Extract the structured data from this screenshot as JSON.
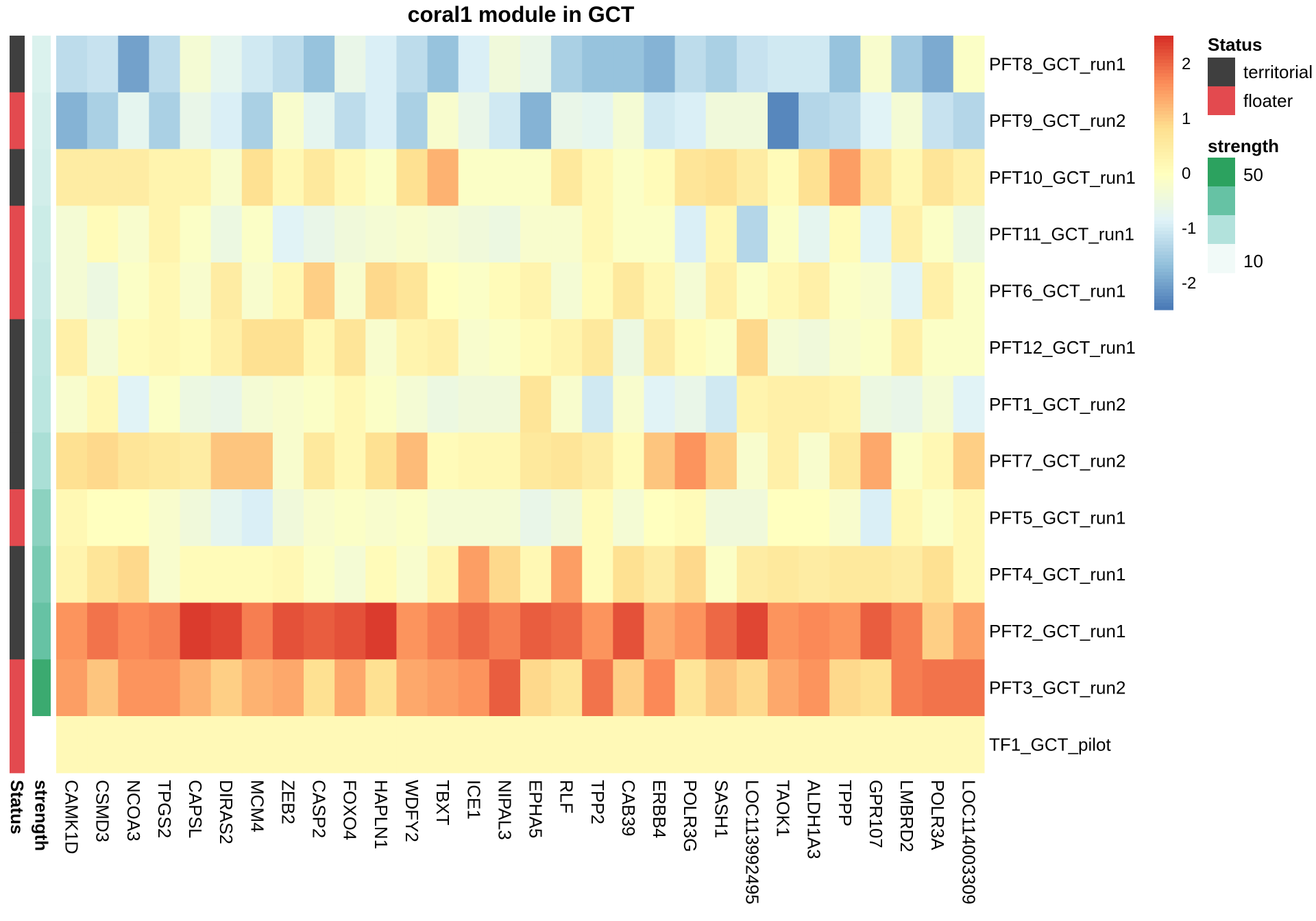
{
  "chart_data": {
    "type": "heatmap",
    "title": "coral1 module in GCT",
    "columns": [
      "CAMK1D",
      "CSMD3",
      "NCOA3",
      "TPGS2",
      "CAPSL",
      "DIRAS2",
      "MCM4",
      "ZEB2",
      "CASP2",
      "FOXO4",
      "HAPLN1",
      "WDFY2",
      "TBXT",
      "ICE1",
      "NIPAL3",
      "EPHA5",
      "RLF",
      "TPP2",
      "CAB39",
      "ERBB4",
      "POLR3G",
      "SASH1",
      "LOC113992495",
      "TAOK1",
      "ALDH1A3",
      "TPPP",
      "GPR107",
      "LMBRD2",
      "POLR3A",
      "LOC114003309"
    ],
    "rows": [
      "PFT8_GCT_run1",
      "PFT9_GCT_run2",
      "PFT10_GCT_run1",
      "PFT11_GCT_run1",
      "PFT6_GCT_run1",
      "PFT12_GCT_run1",
      "PFT1_GCT_run2",
      "PFT7_GCT_run2",
      "PFT5_GCT_run1",
      "PFT4_GCT_run1",
      "PFT2_GCT_run1",
      "PFT3_GCT_run2",
      "TF1_GCT_pilot"
    ],
    "values": [
      [
        -1.2,
        -1.1,
        -2.0,
        -1.2,
        -0.3,
        -0.7,
        -1.0,
        -1.2,
        -1.6,
        -0.6,
        -0.9,
        -1.2,
        -1.6,
        -0.9,
        -0.4,
        -0.6,
        -1.4,
        -1.6,
        -1.6,
        -1.8,
        -1.2,
        -1.4,
        -1.1,
        -1.0,
        -1.0,
        -1.6,
        -0.2,
        -1.5,
        -1.9,
        -0.1
      ],
      [
        -1.8,
        -1.4,
        -0.7,
        -1.4,
        -0.6,
        -0.9,
        -1.4,
        -0.2,
        -0.7,
        -1.2,
        -0.9,
        -1.4,
        -0.2,
        -0.6,
        -1.0,
        -1.8,
        -0.6,
        -0.7,
        -0.3,
        -1.0,
        -0.9,
        -0.4,
        -0.4,
        -2.3,
        -1.3,
        -1.2,
        -0.8,
        -0.3,
        -1.1,
        -1.3
      ],
      [
        0.5,
        0.5,
        0.5,
        0.3,
        0.3,
        -0.2,
        0.8,
        0.2,
        0.6,
        0.2,
        -0.1,
        0.8,
        1.3,
        -0.1,
        -0.1,
        -0.1,
        0.6,
        0.2,
        -0.1,
        0.1,
        0.7,
        0.8,
        0.5,
        0.1,
        0.8,
        1.5,
        0.7,
        0.2,
        0.7,
        0.4
      ],
      [
        -0.3,
        0.1,
        -0.2,
        0.3,
        -0.1,
        -0.5,
        -0.1,
        -0.8,
        -0.6,
        -0.4,
        -0.3,
        -0.2,
        -0.3,
        -0.4,
        -0.5,
        -0.2,
        -0.2,
        0.2,
        -0.1,
        -0.1,
        -0.9,
        0.2,
        -1.3,
        -0.1,
        -0.7,
        0.1,
        -0.8,
        0.4,
        -0.1,
        -0.5
      ],
      [
        -0.3,
        -0.5,
        -0.1,
        0.2,
        -0.2,
        0.5,
        -0.2,
        0.2,
        1.0,
        -0.2,
        0.9,
        0.7,
        0.0,
        -0.1,
        0.1,
        0.3,
        -0.3,
        0.1,
        0.6,
        0.2,
        -0.3,
        0.4,
        -0.1,
        0.2,
        0.4,
        -0.1,
        -0.2,
        -0.8,
        0.4,
        -0.1
      ],
      [
        0.4,
        -0.3,
        0.1,
        0.2,
        0.1,
        0.4,
        0.8,
        0.8,
        0.2,
        0.7,
        -0.2,
        0.3,
        0.4,
        -0.2,
        -0.1,
        0.1,
        0.3,
        0.6,
        -0.5,
        0.5,
        0.1,
        -0.1,
        0.9,
        -0.3,
        -0.4,
        -0.2,
        -0.1,
        0.4,
        -0.1,
        -0.1
      ],
      [
        -0.2,
        0.2,
        -0.8,
        -0.1,
        -0.5,
        -0.6,
        -0.3,
        -0.2,
        -0.1,
        0.2,
        -0.1,
        -0.3,
        -0.5,
        -0.4,
        -0.4,
        0.7,
        -0.2,
        -1.0,
        -0.2,
        -0.8,
        -0.6,
        -1.0,
        0.3,
        0.4,
        0.4,
        0.3,
        -0.5,
        -0.6,
        -0.3,
        -0.8
      ],
      [
        0.8,
        0.9,
        0.7,
        0.6,
        0.5,
        1.1,
        1.1,
        -0.2,
        0.6,
        0.2,
        0.8,
        1.2,
        0.1,
        0.2,
        0.2,
        0.6,
        0.7,
        0.5,
        0.1,
        1.1,
        1.6,
        1.0,
        -0.2,
        0.4,
        -0.2,
        0.6,
        1.4,
        -0.1,
        0.2,
        1.0
      ],
      [
        0.2,
        0.0,
        0.0,
        -0.2,
        -0.4,
        -0.7,
        -0.9,
        -0.4,
        -0.2,
        -0.1,
        -0.2,
        -0.1,
        -0.3,
        -0.3,
        -0.3,
        -0.6,
        -0.4,
        0.1,
        -0.3,
        0.0,
        0.1,
        -0.4,
        -0.4,
        0.0,
        0.0,
        -0.2,
        -0.9,
        0.2,
        -0.1,
        0.2
      ],
      [
        0.3,
        0.7,
        0.9,
        -0.2,
        0.1,
        0.1,
        0.1,
        0.2,
        -0.1,
        -0.3,
        0.1,
        -0.2,
        0.3,
        1.5,
        0.9,
        0.2,
        1.5,
        0.1,
        0.8,
        0.5,
        0.9,
        -0.1,
        0.5,
        0.6,
        0.5,
        0.6,
        0.6,
        0.5,
        0.8,
        0.2
      ],
      [
        1.6,
        1.9,
        1.7,
        1.8,
        2.4,
        2.3,
        1.8,
        2.2,
        2.1,
        2.2,
        2.4,
        1.6,
        1.8,
        2.0,
        1.8,
        2.1,
        2.0,
        1.6,
        2.2,
        1.4,
        1.6,
        2.0,
        2.3,
        1.6,
        1.7,
        1.6,
        2.1,
        1.8,
        1.0,
        1.5
      ],
      [
        1.5,
        1.1,
        1.6,
        1.6,
        1.3,
        1.0,
        1.3,
        1.4,
        0.8,
        1.4,
        0.8,
        1.4,
        1.5,
        1.6,
        2.1,
        0.9,
        0.7,
        1.9,
        1.0,
        1.7,
        0.7,
        1.1,
        0.9,
        1.4,
        1.6,
        0.9,
        0.8,
        1.8,
        1.9,
        1.9
      ],
      [
        0.15,
        0.15,
        0.15,
        0.15,
        0.15,
        0.15,
        0.15,
        0.15,
        0.15,
        0.15,
        0.15,
        0.15,
        0.15,
        0.15,
        0.15,
        0.15,
        0.15,
        0.15,
        0.15,
        0.15,
        0.15,
        0.15,
        0.15,
        0.15,
        0.15,
        0.15,
        0.15,
        0.15,
        0.15,
        0.15
      ]
    ],
    "color_range": [
      -2.5,
      2.5
    ],
    "colorbar_ticks": [
      2,
      1,
      0,
      -1,
      -2
    ],
    "palette": [
      "#4575b4",
      "#91bfdb",
      "#e0f3f8",
      "#ffffbf",
      "#fee090",
      "#fc8d59",
      "#d73027"
    ],
    "annotations": {
      "status": {
        "label": "Status",
        "values": [
          "territorial",
          "floater",
          "territorial",
          "floater",
          "floater",
          "territorial",
          "territorial",
          "territorial",
          "floater",
          "territorial",
          "territorial",
          "floater",
          "floater"
        ],
        "colors": {
          "territorial": "#3f3f3f",
          "floater": "#e34a4f"
        }
      },
      "strength": {
        "label": "strength",
        "values": [
          7,
          9,
          10,
          12,
          13,
          16,
          17,
          22,
          30,
          35,
          40,
          55,
          null
        ],
        "range": [
          0,
          60
        ],
        "ramp": [
          "#f1faf8",
          "#b2e2dc",
          "#66c2a4",
          "#2ca25f"
        ]
      }
    },
    "legend": {
      "status": {
        "title": "Status",
        "items": [
          "territorial",
          "floater"
        ]
      },
      "strength": {
        "title": "strength",
        "ticks": [
          "50",
          "10"
        ],
        "ramp": [
          "#2ca25f",
          "#66c2a4",
          "#b2e2dc",
          "#f1faf8"
        ]
      }
    }
  }
}
